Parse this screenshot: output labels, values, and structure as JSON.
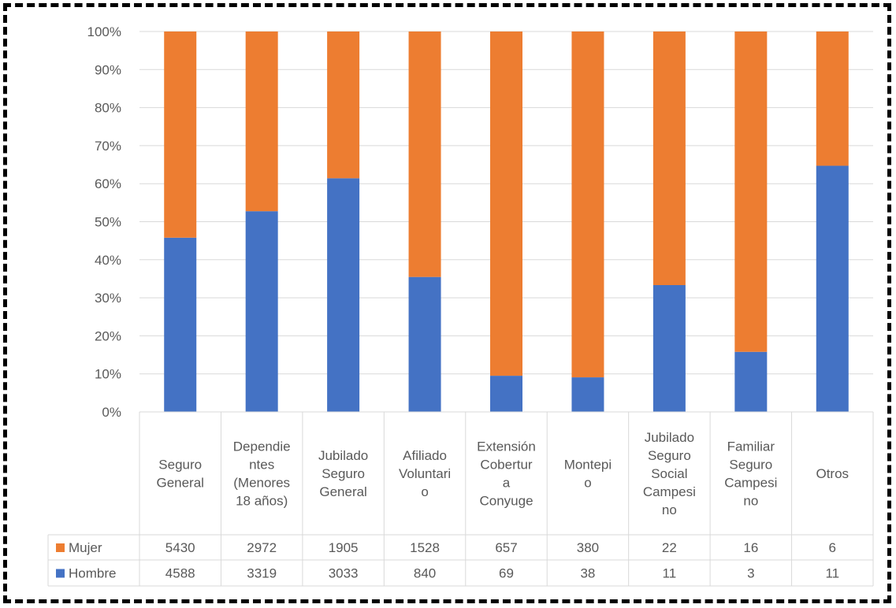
{
  "chart_data": {
    "type": "bar",
    "stacked": "percent",
    "categories": [
      [
        "Seguro",
        "General"
      ],
      [
        "Dependie",
        "ntes",
        "(Menores",
        "18 años)"
      ],
      [
        "Jubilado",
        "Seguro",
        "General"
      ],
      [
        "Afiliado",
        "Voluntari",
        "o"
      ],
      [
        "Extensión",
        "Cobertur",
        "a",
        "Conyuge"
      ],
      [
        "Montepi",
        "o"
      ],
      [
        "Jubilado",
        "Seguro",
        "Social",
        "Campesi",
        "no"
      ],
      [
        "Familiar",
        "Seguro",
        "Campesi",
        "no"
      ],
      [
        "Otros"
      ]
    ],
    "series": [
      {
        "name": "Hombre",
        "color": "#4472c4",
        "values": [
          4588,
          3319,
          3033,
          840,
          69,
          38,
          11,
          3,
          11
        ]
      },
      {
        "name": "Mujer",
        "color": "#ed7d31",
        "values": [
          5430,
          2972,
          1905,
          1528,
          657,
          380,
          22,
          16,
          6
        ]
      }
    ],
    "table_row_order": [
      "Mujer",
      "Hombre"
    ],
    "y_ticks": [
      "0%",
      "10%",
      "20%",
      "30%",
      "40%",
      "50%",
      "60%",
      "70%",
      "80%",
      "90%",
      "100%"
    ],
    "ylim": [
      0,
      100
    ],
    "grid": true,
    "legend": "data-table"
  }
}
